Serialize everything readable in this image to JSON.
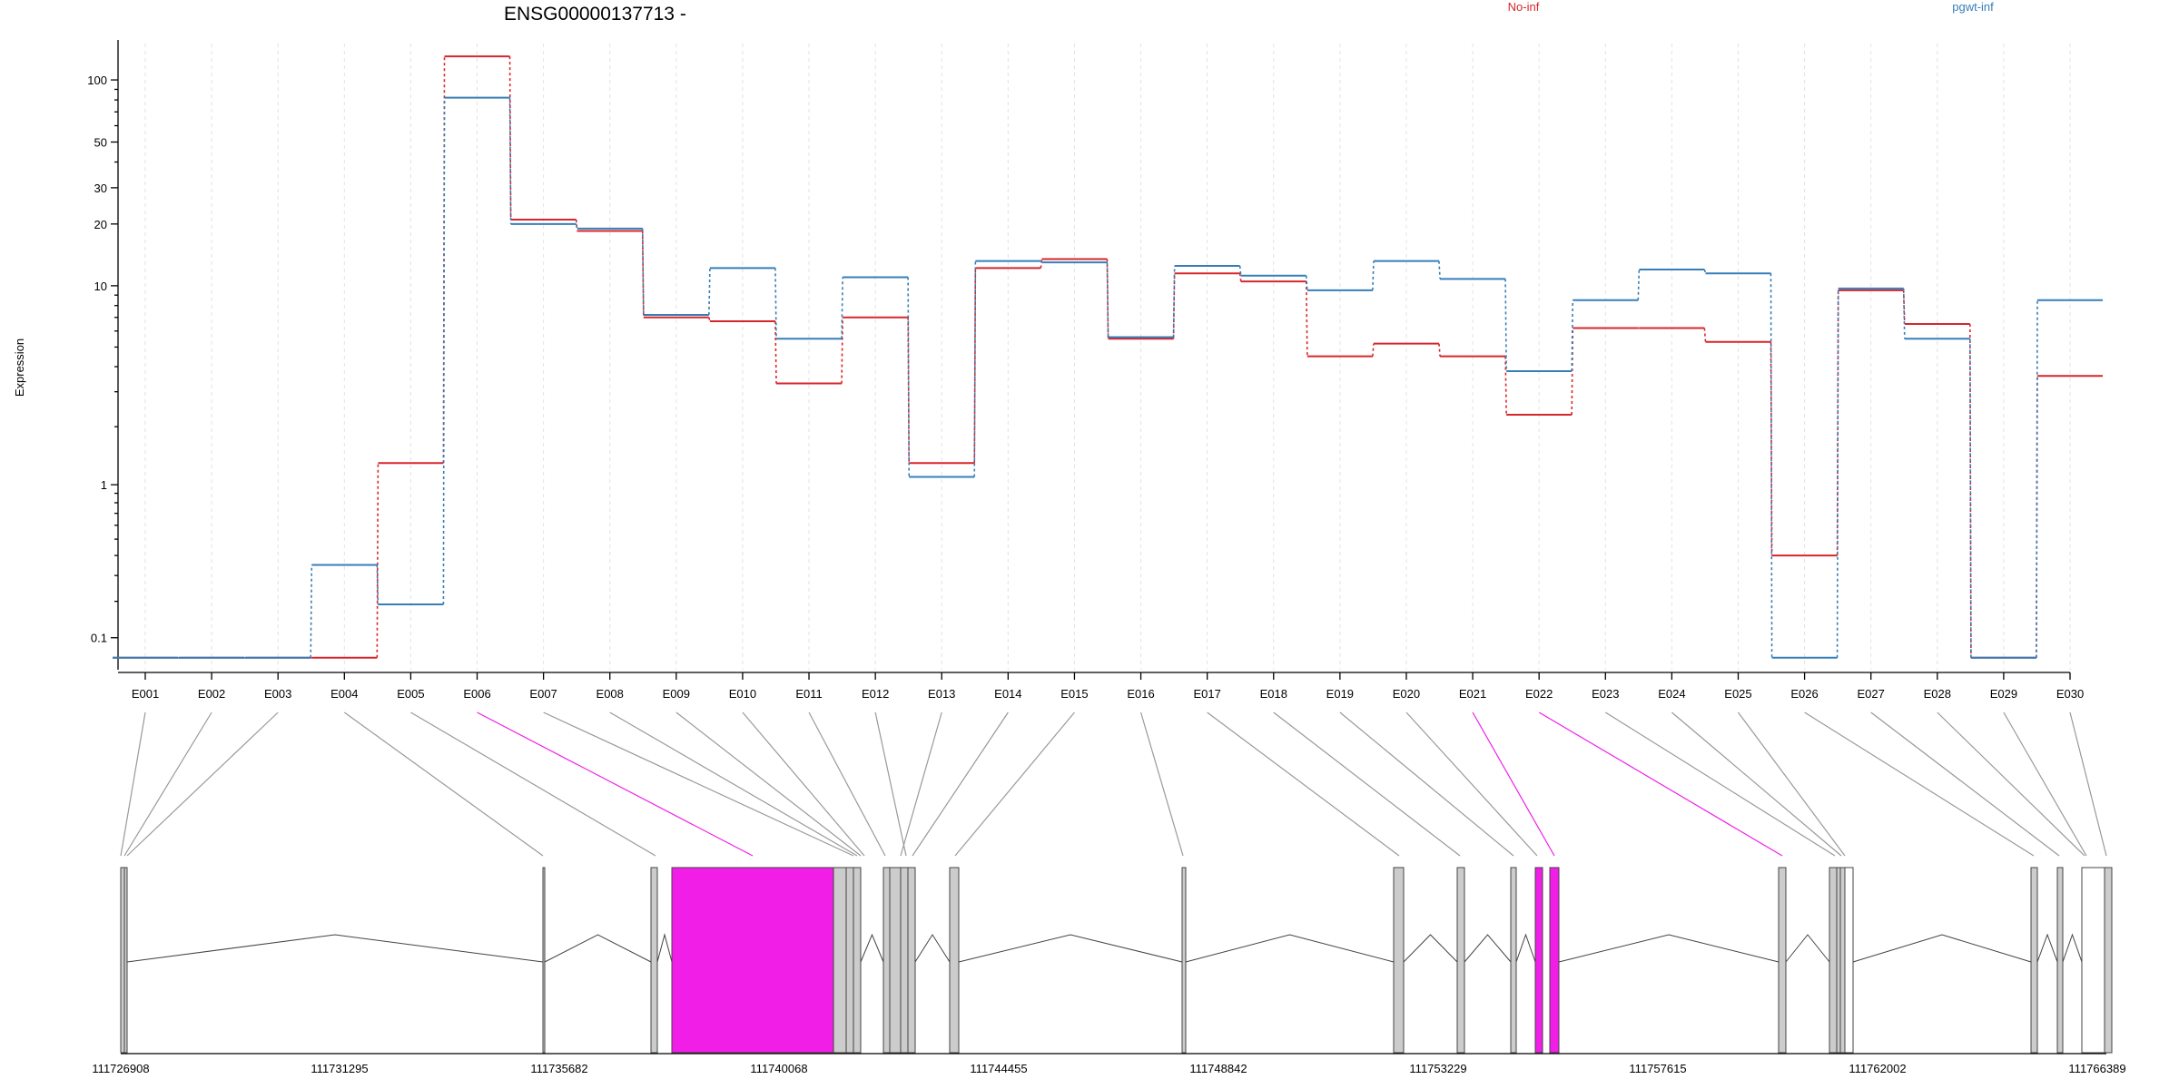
{
  "chart_data": {
    "type": "line",
    "title": "ENSG00000137713 -",
    "ylabel": "Expression",
    "yscale": "log(x+0.1)",
    "yticks": [
      0.1,
      1,
      10,
      20,
      30,
      50,
      100
    ],
    "ytick_labels": [
      "0.1",
      "1",
      "10",
      "20",
      "30",
      "50",
      "100"
    ],
    "categories": [
      "E001",
      "E002",
      "E003",
      "E004",
      "E005",
      "E006",
      "E007",
      "E008",
      "E009",
      "E010",
      "E011",
      "E012",
      "E013",
      "E014",
      "E015",
      "E016",
      "E017",
      "E018",
      "E019",
      "E020",
      "E021",
      "E022",
      "E023",
      "E024",
      "E025",
      "E026",
      "E027",
      "E028",
      "E029",
      "E030"
    ],
    "series": [
      {
        "name": "No-inf",
        "color": "#d7262b",
        "values": [
          0.06,
          0.06,
          0.06,
          0.06,
          1.3,
          130,
          21,
          18.5,
          7,
          6.7,
          3.3,
          7,
          1.3,
          12.2,
          13.5,
          5.5,
          11.5,
          10.5,
          4.5,
          5.2,
          4.5,
          2.3,
          6.2,
          6.2,
          5.3,
          0.4,
          9.5,
          6.5,
          0.06,
          3.6
        ]
      },
      {
        "name": "pgwt-inf",
        "color": "#377eb8",
        "values": [
          0.06,
          0.06,
          0.06,
          0.35,
          0.19,
          82,
          20,
          19,
          7.2,
          12.2,
          5.5,
          11,
          1.1,
          13.2,
          13,
          5.6,
          12.5,
          11.2,
          9.5,
          13.2,
          10.8,
          3.8,
          8.5,
          12,
          11.5,
          0.06,
          9.7,
          5.5,
          0.06,
          8.5
        ]
      }
    ],
    "gene_model": {
      "coord_ticks": [
        "111726908",
        "111731295",
        "111735682",
        "111740068",
        "111744455",
        "111748842",
        "111753229",
        "111757615",
        "111762002",
        "111766389"
      ],
      "highlight_color": "#f01ee6",
      "exon_fill": "#cccccc",
      "highlighted_exons": [
        "E006",
        "E021",
        "E022"
      ]
    },
    "grid": "vertical dashed",
    "legend": "top"
  }
}
